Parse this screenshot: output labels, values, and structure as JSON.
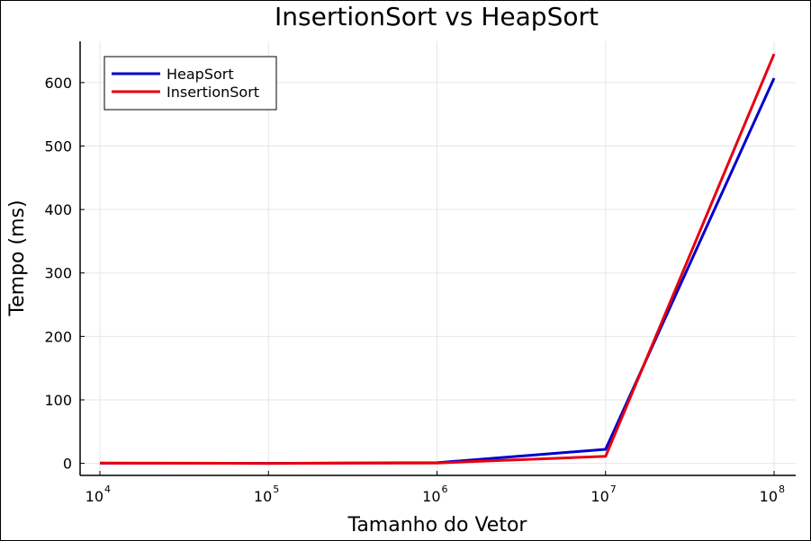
{
  "chart_data": {
    "type": "line",
    "title": "InsertionSort vs HeapSort",
    "xlabel": "Tamanho do Vetor",
    "ylabel": "Tempo (ms)",
    "xscale": "log10",
    "x": [
      10000,
      100000,
      1000000,
      10000000,
      100000000
    ],
    "x_tick_labels": [
      {
        "base": "10",
        "exp": "4"
      },
      {
        "base": "10",
        "exp": "5"
      },
      {
        "base": "10",
        "exp": "6"
      },
      {
        "base": "10",
        "exp": "7"
      },
      {
        "base": "10",
        "exp": "8"
      }
    ],
    "y_ticks": [
      0,
      100,
      200,
      300,
      400,
      500,
      600
    ],
    "ylim": [
      -19,
      665
    ],
    "grid": true,
    "legend_position": "top-left",
    "series": [
      {
        "name": "HeapSort",
        "color": "#0000cc",
        "values": [
          0.3,
          0.0,
          0.9,
          22,
          607
        ]
      },
      {
        "name": "InsertionSort",
        "color": "#e6000f",
        "values": [
          0.4,
          0.0,
          0.6,
          11,
          645
        ]
      }
    ]
  }
}
